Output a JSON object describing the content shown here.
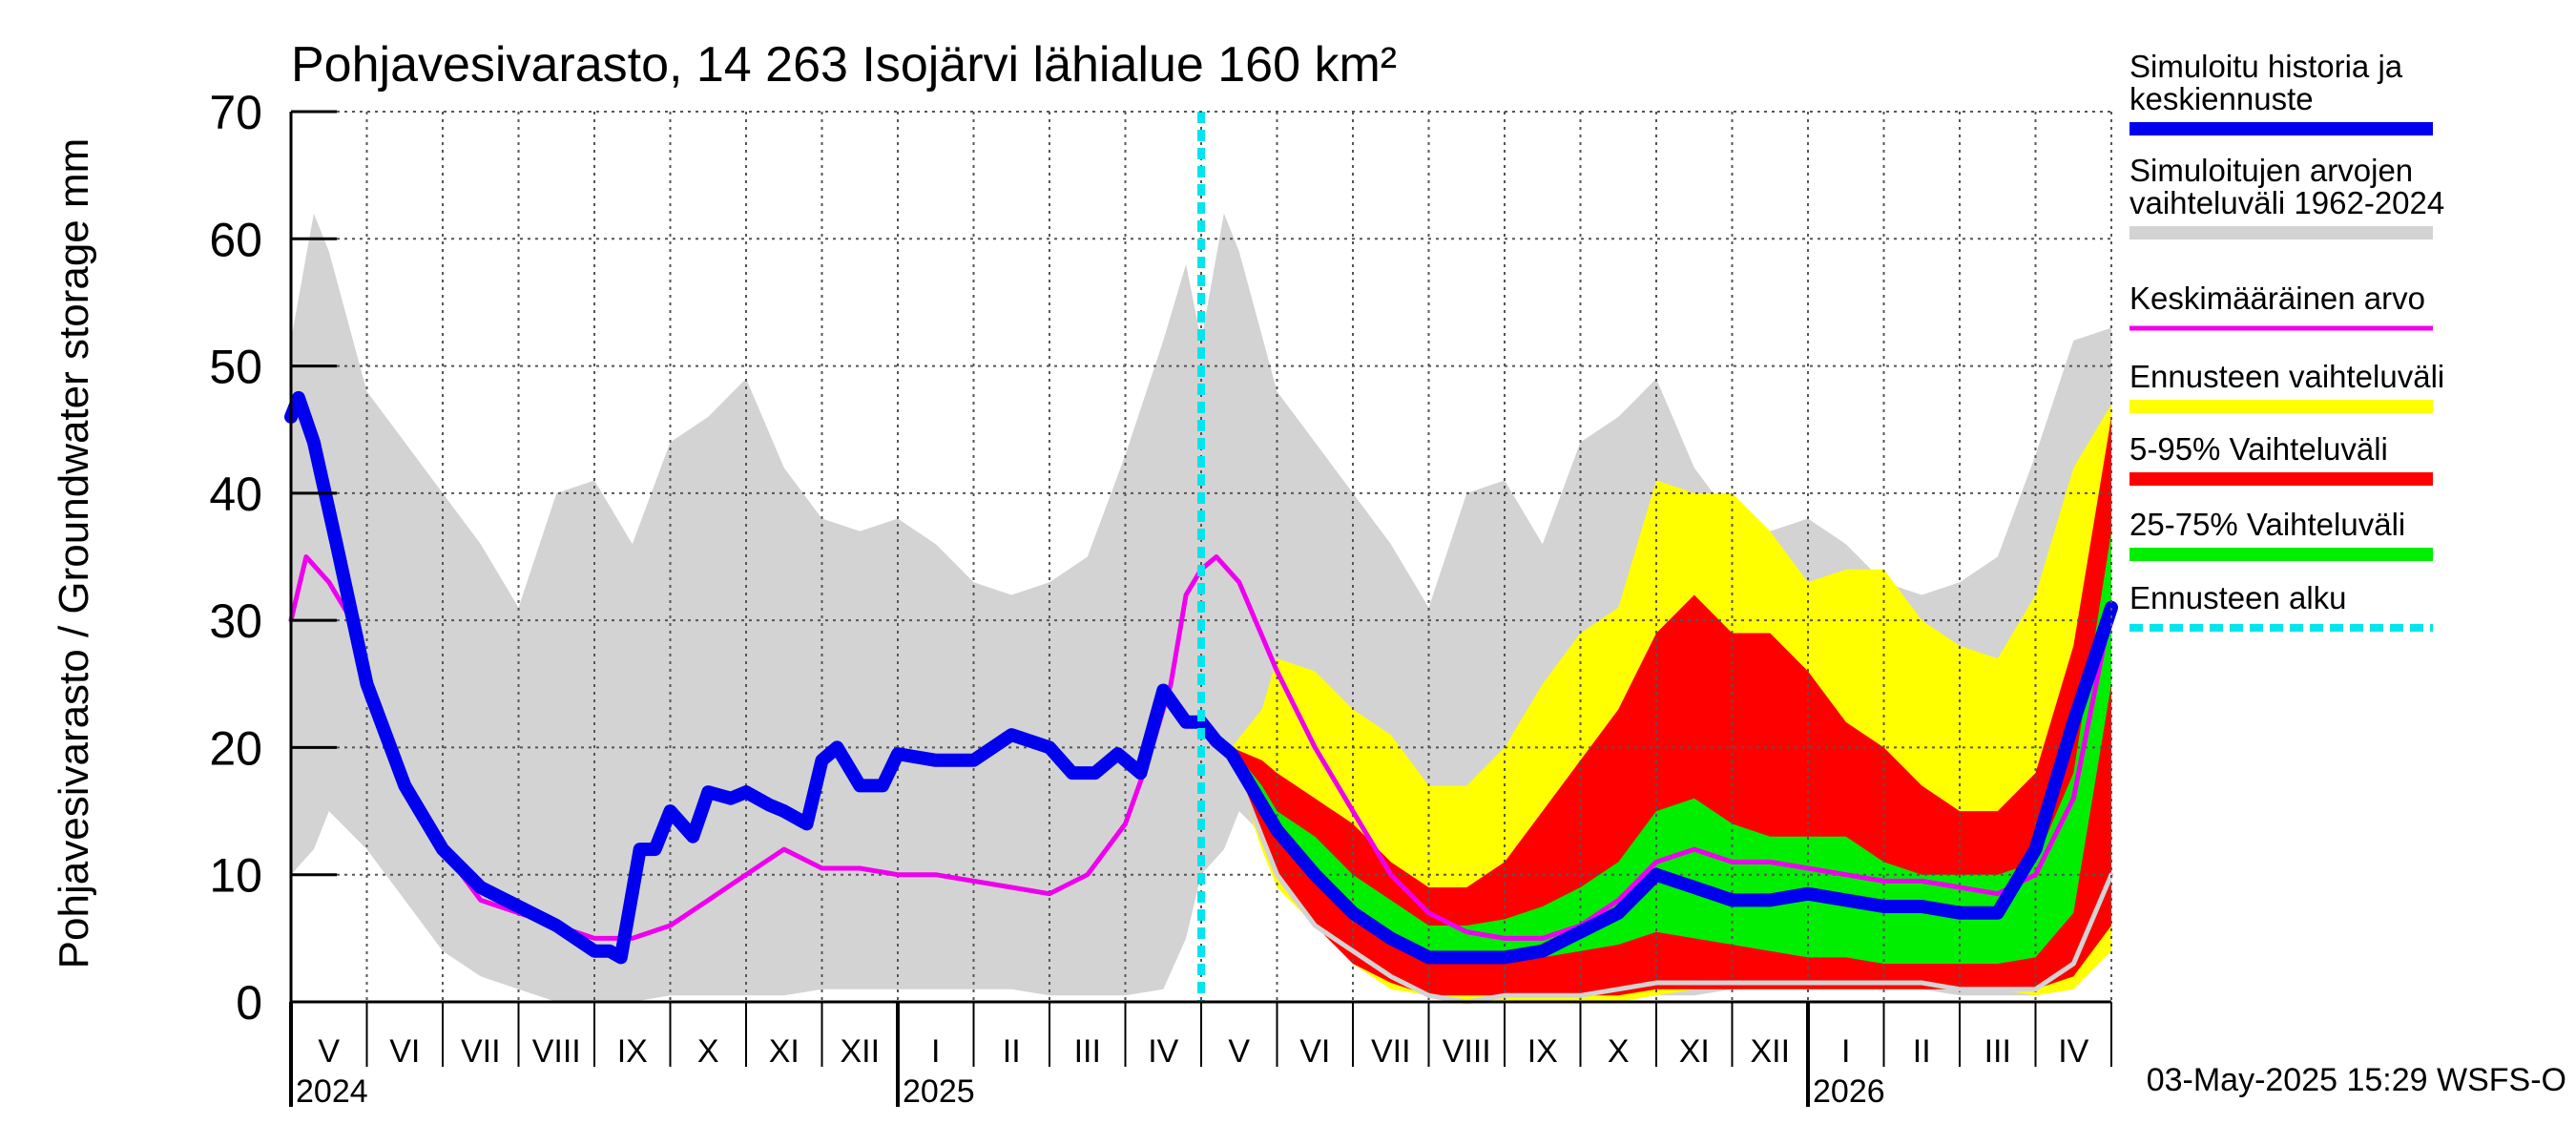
{
  "chart_data": {
    "type": "area",
    "title": "Pohjavesivarasto, 14 263 Isojärvi lähialue 160 km²",
    "ylabel": "Pohjavesivarasto / Groundwater storage   mm",
    "ylim": [
      0,
      70
    ],
    "yticks": [
      0,
      10,
      20,
      30,
      40,
      50,
      60,
      70
    ],
    "grid": true,
    "legend_position": "right",
    "months": [
      "V",
      "VI",
      "VII",
      "VIII",
      "IX",
      "X",
      "XI",
      "XII",
      "I",
      "II",
      "III",
      "IV",
      "V",
      "VI",
      "VII",
      "VIII",
      "IX",
      "X",
      "XI",
      "XII",
      "I",
      "II",
      "III",
      "IV"
    ],
    "years": [
      {
        "label": "2024",
        "month_index": 0
      },
      {
        "label": "2025",
        "month_index": 8
      },
      {
        "label": "2026",
        "month_index": 20
      }
    ],
    "forecast_start_month_index": 12,
    "timestamp": "03-May-2025 15:29 WSFS-O",
    "legend": [
      {
        "label": "Simuloitu historia ja\nkeskiennuste",
        "color": "#0000ee",
        "width": 14,
        "dash": false
      },
      {
        "label": "Simuloitujen arvojen\nvaihteluväli 1962-2024",
        "color": "#d3d3d3",
        "width": 14,
        "dash": false
      },
      {
        "label": "Keskimääräinen arvo",
        "color": "#ee00ee",
        "width": 5,
        "dash": false
      },
      {
        "label": "Ennusteen vaihteluväli",
        "color": "#ffff00",
        "width": 14,
        "dash": false
      },
      {
        "label": "5-95% Vaihteluväli",
        "color": "#ff0000",
        "width": 14,
        "dash": false
      },
      {
        "label": "25-75% Vaihteluväli",
        "color": "#00ee00",
        "width": 14,
        "dash": false
      },
      {
        "label": "Ennusteen alku",
        "color": "#00e5ee",
        "width": 8,
        "dash": true
      }
    ],
    "x_unit": "months since 1 May 2024",
    "series": [
      {
        "name": "Simuloitujen arvojen vaihteluväli 1962-2024",
        "kind": "band",
        "color": "#d3d3d3",
        "x": [
          0,
          0.3,
          0.5,
          1.0,
          1.5,
          2.0,
          2.5,
          3.0,
          3.5,
          4.0,
          4.5,
          5.0,
          5.5,
          6.0,
          6.5,
          7.0,
          7.5,
          8.0,
          8.5,
          9.0,
          9.5,
          10.0,
          10.5,
          11.0,
          11.5,
          11.8,
          12.0,
          12.3,
          12.5,
          13.0,
          13.5,
          14.0,
          14.5,
          15.0,
          15.5,
          16.0,
          16.5,
          17.0,
          17.5,
          18.0,
          18.5,
          19.0,
          19.5,
          20.0,
          20.5,
          21.0,
          21.5,
          22.0,
          22.5,
          23.0,
          23.5,
          24.0
        ],
        "low": [
          10,
          12,
          15,
          12,
          8,
          4,
          2,
          1,
          0,
          0,
          0,
          0.5,
          0.5,
          0.5,
          0.5,
          1,
          1,
          1,
          1,
          1,
          1,
          0.5,
          0.5,
          0.5,
          1,
          5,
          10,
          12,
          15,
          12,
          8,
          4,
          2,
          1,
          0,
          0,
          0,
          0.5,
          0.5,
          0.5,
          0.5,
          1,
          1,
          1,
          1,
          1,
          1,
          0.5,
          0.5,
          0.5,
          1,
          5
        ],
        "high": [
          52,
          62,
          59,
          48,
          44,
          40,
          36,
          31,
          40,
          41,
          36,
          44,
          46,
          49,
          42,
          38,
          37,
          38,
          36,
          33,
          32,
          33,
          35,
          43,
          52,
          58,
          52,
          62,
          59,
          48,
          44,
          40,
          36,
          31,
          40,
          41,
          36,
          44,
          46,
          49,
          42,
          38,
          37,
          38,
          36,
          33,
          32,
          33,
          35,
          43,
          52,
          53
        ]
      },
      {
        "name": "Ennusteen vaihteluväli",
        "kind": "band",
        "color": "#ffff00",
        "x": [
          12.4,
          12.8,
          13.0,
          13.5,
          14.0,
          14.5,
          15.0,
          15.5,
          16.0,
          16.5,
          17.0,
          17.5,
          18.0,
          18.5,
          19.0,
          19.5,
          20.0,
          20.5,
          21.0,
          21.5,
          22.0,
          22.5,
          23.0,
          23.5,
          24.0
        ],
        "low": [
          19,
          12,
          9,
          6,
          3,
          1,
          0.5,
          0,
          0,
          0,
          0,
          0,
          0.5,
          1,
          1,
          1,
          1,
          1,
          1,
          1,
          1,
          1,
          0.5,
          1,
          4
        ],
        "high": [
          20,
          23,
          27,
          26,
          23,
          21,
          17,
          17,
          20,
          25,
          29,
          31,
          41,
          40,
          40,
          37,
          33,
          34,
          34,
          30,
          28,
          27,
          32,
          42,
          47
        ]
      },
      {
        "name": "5-95% Vaihteluväli",
        "kind": "band",
        "color": "#ff0000",
        "x": [
          12.4,
          12.8,
          13.0,
          13.5,
          14.0,
          14.5,
          15.0,
          15.5,
          16.0,
          16.5,
          17.0,
          17.5,
          18.0,
          18.5,
          19.0,
          19.5,
          20.0,
          20.5,
          21.0,
          21.5,
          22.0,
          22.5,
          23.0,
          23.5,
          24.0
        ],
        "low": [
          19,
          13,
          10,
          6,
          3,
          1.5,
          0.5,
          0.5,
          0.5,
          0.5,
          0.5,
          0.5,
          1,
          1,
          1,
          1,
          1,
          1,
          1,
          1,
          1,
          1,
          1,
          2,
          6
        ],
        "high": [
          20,
          19,
          18,
          16,
          14,
          11,
          9,
          9,
          11,
          15,
          19,
          23,
          29,
          32,
          29,
          29,
          26,
          22,
          20,
          17,
          15,
          15,
          18,
          28,
          46
        ]
      },
      {
        "name": "25-75% Vaihteluväli",
        "kind": "band",
        "color": "#00ee00",
        "x": [
          12.4,
          12.8,
          13.0,
          13.5,
          14.0,
          14.5,
          15.0,
          15.5,
          16.0,
          16.5,
          17.0,
          17.5,
          18.0,
          18.5,
          19.0,
          19.5,
          20.0,
          20.5,
          21.0,
          21.5,
          22.0,
          22.5,
          23.0,
          23.5,
          24.0
        ],
        "low": [
          19,
          15,
          13,
          10,
          7,
          5,
          4,
          3,
          3,
          3.5,
          4,
          4.5,
          5.5,
          5,
          4.5,
          4,
          3.5,
          3.5,
          3,
          3,
          3,
          3,
          3.5,
          7,
          25
        ],
        "high": [
          20,
          17,
          15,
          13,
          10,
          8,
          6,
          6,
          6.5,
          7.5,
          9,
          11,
          15,
          16,
          14,
          13,
          13,
          13,
          11,
          10,
          10,
          10,
          11,
          18,
          37
        ]
      },
      {
        "name": "Simuloitujen arvojen vaihteluväli 1962-2024 (minimi)",
        "kind": "line",
        "color": "#d3d3d3",
        "width": 5,
        "x": [
          12.4,
          12.8,
          13.0,
          13.5,
          14.0,
          14.5,
          15.0,
          15.5,
          16.0,
          16.5,
          17.0,
          17.5,
          18.0,
          18.5,
          19.0,
          19.5,
          20.0,
          20.5,
          21.0,
          21.5,
          22.0,
          22.5,
          23.0,
          23.5,
          24.0
        ],
        "y": [
          19,
          13,
          10,
          6,
          4,
          2,
          0.5,
          0,
          0.5,
          0.5,
          0.5,
          1,
          1.5,
          1.5,
          1.5,
          1.5,
          1.5,
          1.5,
          1.5,
          1.5,
          1,
          1,
          1,
          3,
          10
        ]
      },
      {
        "name": "Keskimääräinen arvo",
        "kind": "line",
        "color": "#ee00ee",
        "width": 5,
        "x": [
          0,
          0.2,
          0.5,
          0.8,
          1.0,
          1.5,
          2.0,
          2.5,
          3.0,
          3.5,
          4.0,
          4.5,
          5.0,
          5.5,
          6.0,
          6.5,
          7.0,
          7.5,
          8.0,
          8.5,
          9.0,
          9.5,
          10.0,
          10.5,
          11.0,
          11.3,
          11.6,
          11.8,
          12.0,
          12.2,
          12.5,
          13.0,
          13.5,
          14.0,
          14.5,
          15.0,
          15.5,
          16.0,
          16.5,
          17.0,
          17.5,
          18.0,
          18.5,
          19.0,
          19.5,
          20.0,
          20.5,
          21.0,
          21.5,
          22.0,
          22.5,
          23.0,
          23.5,
          24.0
        ],
        "y": [
          30,
          35,
          33,
          30,
          24,
          17,
          12,
          8,
          7,
          6,
          5,
          5,
          6,
          8,
          10,
          12,
          10.5,
          10.5,
          10,
          10,
          9.5,
          9,
          8.5,
          10,
          14,
          19,
          25,
          32,
          34,
          35,
          33,
          26,
          20,
          15,
          10,
          7,
          5.5,
          5,
          5,
          6,
          8,
          11,
          12,
          11,
          11,
          10.5,
          10,
          9.5,
          9.5,
          9,
          8.5,
          10,
          16,
          31
        ]
      },
      {
        "name": "Simuloitu historia ja keskiennuste",
        "kind": "line",
        "color": "#0000ee",
        "width": 14,
        "x": [
          0,
          0.1,
          0.3,
          0.6,
          1.0,
          1.5,
          2.0,
          2.5,
          3.0,
          3.5,
          4.0,
          4.2,
          4.35,
          4.6,
          4.8,
          5.0,
          5.3,
          5.5,
          5.8,
          6.0,
          6.3,
          6.5,
          6.8,
          7.0,
          7.2,
          7.5,
          7.8,
          8.0,
          8.5,
          9.0,
          9.5,
          10.0,
          10.3,
          10.6,
          10.9,
          11.0,
          11.2,
          11.5,
          11.8,
          12.0,
          12.2,
          12.4,
          12.8,
          13.0,
          13.5,
          14.0,
          14.5,
          15.0,
          15.5,
          16.0,
          16.5,
          17.0,
          17.5,
          18.0,
          18.5,
          19.0,
          19.5,
          20.0,
          20.5,
          21.0,
          21.5,
          22.0,
          22.5,
          23.0,
          23.5,
          24.0
        ],
        "y": [
          46,
          47.5,
          44,
          36,
          25,
          17,
          12,
          9,
          7.5,
          6,
          4,
          4,
          3.5,
          12,
          12,
          15,
          13,
          16.5,
          16,
          16.5,
          15.5,
          15,
          14,
          19,
          20,
          17,
          17,
          19.5,
          19,
          19,
          21,
          20,
          18,
          18,
          19.5,
          19,
          18,
          24.5,
          22,
          22,
          20.5,
          19.5,
          15.5,
          13.5,
          10,
          7,
          5,
          3.5,
          3.5,
          3.5,
          4,
          5.5,
          7,
          10,
          9,
          8,
          8,
          8.5,
          8,
          7.5,
          7.5,
          7,
          7,
          12,
          22,
          31
        ]
      }
    ]
  }
}
